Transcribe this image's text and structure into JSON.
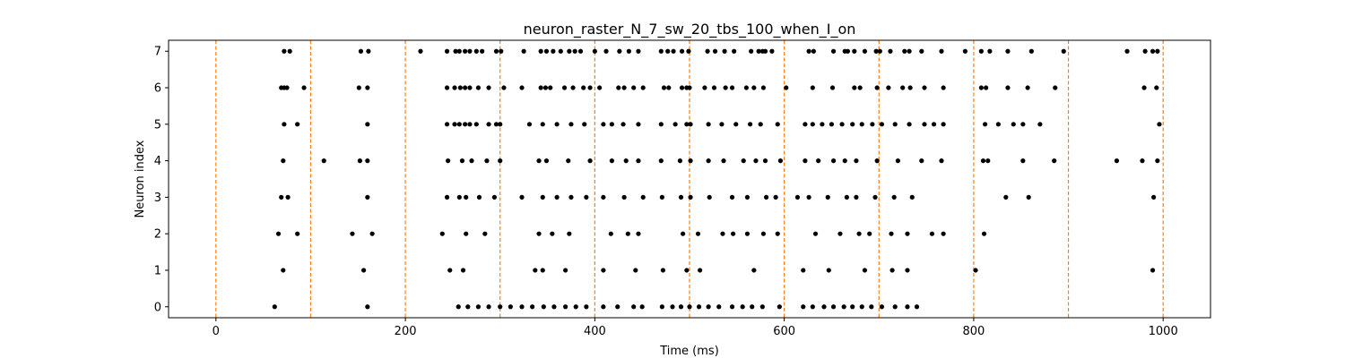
{
  "chart_data": {
    "type": "scatter",
    "title": "neuron_raster_N_7_sw_20_tbs_100_when_I_on",
    "xlabel": "Time (ms)",
    "ylabel": "Neuron index",
    "xlim": [
      -50,
      1050
    ],
    "ylim": [
      -0.3,
      7.3
    ],
    "x_ticks": [
      0,
      200,
      400,
      600,
      800,
      1000
    ],
    "y_ticks": [
      0,
      1,
      2,
      3,
      4,
      5,
      6,
      7
    ],
    "grid": false,
    "legend": "none",
    "marker_color": "#000000",
    "vline_color": "#ff7f0e",
    "vlines": [
      0,
      100,
      200,
      300,
      400,
      500,
      600,
      700,
      800,
      900,
      1000
    ],
    "series": [
      {
        "neuron": 0,
        "x": [
          62,
          160,
          256,
          266,
          277,
          288,
          300,
          311,
          323,
          334,
          346,
          357,
          369,
          380,
          391,
          409,
          424,
          441,
          450,
          471,
          482,
          491,
          500,
          510,
          520,
          531,
          545,
          556,
          566,
          577,
          595,
          620,
          630,
          642,
          652,
          663,
          672,
          682,
          692,
          703,
          717,
          730,
          740
        ]
      },
      {
        "neuron": 1,
        "x": [
          71,
          156,
          247,
          261,
          337,
          345,
          369,
          409,
          443,
          472,
          497,
          511,
          568,
          620,
          647,
          685,
          714,
          730,
          802,
          989
        ]
      },
      {
        "neuron": 2,
        "x": [
          66,
          86,
          144,
          165,
          239,
          264,
          284,
          341,
          355,
          373,
          417,
          435,
          446,
          493,
          509,
          535,
          546,
          561,
          578,
          593,
          633,
          659,
          679,
          690,
          713,
          730,
          756,
          768,
          811
        ]
      },
      {
        "neuron": 3,
        "x": [
          69,
          76,
          160,
          244,
          257,
          264,
          278,
          294,
          323,
          345,
          360,
          375,
          391,
          409,
          431,
          451,
          471,
          491,
          501,
          521,
          545,
          561,
          581,
          591,
          614,
          626,
          646,
          666,
          676,
          696,
          716,
          735,
          834,
          858,
          990
        ]
      },
      {
        "neuron": 4,
        "x": [
          71,
          114,
          152,
          160,
          245,
          260,
          270,
          286,
          300,
          341,
          349,
          372,
          395,
          418,
          433,
          446,
          470,
          490,
          501,
          520,
          536,
          557,
          570,
          580,
          596,
          622,
          636,
          652,
          664,
          676,
          698,
          720,
          745,
          766,
          810,
          815,
          852,
          885,
          951,
          978,
          994
        ]
      },
      {
        "neuron": 5,
        "x": [
          72,
          86,
          160,
          244,
          252,
          257,
          263,
          268,
          275,
          288,
          296,
          300,
          331,
          345,
          360,
          375,
          389,
          409,
          418,
          430,
          446,
          470,
          485,
          497,
          501,
          520,
          534,
          549,
          564,
          575,
          593,
          622,
          630,
          640,
          650,
          661,
          672,
          682,
          693,
          703,
          717,
          732,
          748,
          758,
          768,
          812,
          826,
          842,
          852,
          870,
          996
        ]
      },
      {
        "neuron": 6,
        "x": [
          69,
          72,
          75,
          93,
          151,
          160,
          244,
          252,
          258,
          263,
          268,
          277,
          288,
          304,
          323,
          343,
          348,
          353,
          368,
          377,
          388,
          395,
          405,
          425,
          431,
          441,
          451,
          473,
          478,
          492,
          497,
          500,
          516,
          526,
          538,
          545,
          560,
          568,
          578,
          602,
          630,
          651,
          674,
          680,
          698,
          710,
          725,
          733,
          748,
          768,
          808,
          813,
          836,
          857,
          886,
          980,
          993
        ]
      },
      {
        "neuron": 7,
        "x": [
          72,
          78,
          153,
          161,
          216,
          244,
          253,
          257,
          263,
          268,
          275,
          281,
          296,
          301,
          325,
          343,
          349,
          356,
          364,
          373,
          379,
          385,
          400,
          412,
          426,
          436,
          446,
          470,
          477,
          483,
          492,
          499,
          519,
          527,
          537,
          547,
          565,
          573,
          577,
          580,
          587,
          626,
          631,
          652,
          664,
          667,
          674,
          685,
          697,
          701,
          712,
          727,
          732,
          745,
          766,
          791,
          808,
          817,
          836,
          861,
          895,
          962,
          981,
          989,
          994
        ]
      }
    ]
  }
}
